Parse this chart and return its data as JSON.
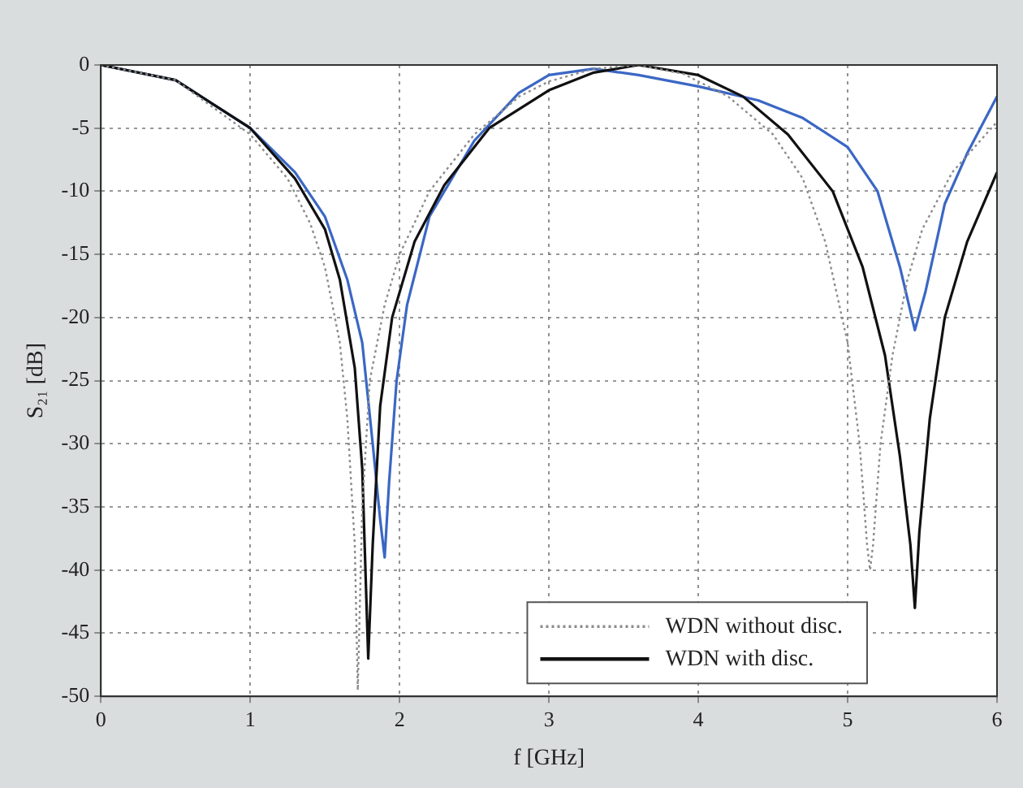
{
  "chart_data": {
    "type": "line",
    "xlabel": "f [GHz]",
    "ylabel": "S₂₁ [dB]",
    "xlim": [
      0,
      6
    ],
    "xticks": [
      0,
      1,
      2,
      3,
      4,
      5,
      6
    ],
    "ylim": [
      -50,
      0
    ],
    "yticks": [
      -50,
      -45,
      -40,
      -35,
      -30,
      -25,
      -20,
      -15,
      -10,
      -5,
      0
    ],
    "grid": true,
    "legend": "bottom right",
    "marker": "none",
    "series": [
      {
        "name": "WDN without disc.",
        "color": "#8c8c8c",
        "line_style": "dotted",
        "x": [
          0,
          0.5,
          1,
          1.25,
          1.4,
          1.5,
          1.6,
          1.65,
          1.7,
          1.72,
          1.75,
          1.8,
          1.9,
          2.0,
          2.2,
          2.5,
          2.8,
          3,
          3.3,
          3.6,
          3.9,
          4.2,
          4.5,
          4.7,
          4.85,
          5.0,
          5.08,
          5.13,
          5.15,
          5.17,
          5.22,
          5.3,
          5.4,
          5.5,
          5.7,
          6
        ],
        "values": [
          0,
          -1.2,
          -5.5,
          -9,
          -12.5,
          -16,
          -22,
          -28,
          -38,
          -49.5,
          -35,
          -25,
          -19,
          -15,
          -10,
          -5.5,
          -2.5,
          -1.3,
          -0.3,
          0,
          -0.7,
          -2.5,
          -5.5,
          -9,
          -14,
          -22,
          -30,
          -38,
          -40,
          -38,
          -30,
          -23,
          -17,
          -13,
          -8.5,
          -4.5
        ]
      },
      {
        "name": "WDN with disc.",
        "color": "#111111",
        "line_style": "solid",
        "x": [
          0,
          0.5,
          1,
          1.3,
          1.5,
          1.6,
          1.7,
          1.75,
          1.79,
          1.82,
          1.87,
          1.95,
          2.1,
          2.3,
          2.6,
          3,
          3.3,
          3.6,
          4,
          4.3,
          4.6,
          4.9,
          5.1,
          5.25,
          5.35,
          5.42,
          5.45,
          5.48,
          5.55,
          5.65,
          5.8,
          6
        ],
        "values": [
          0,
          -1.2,
          -5,
          -9,
          -13,
          -17,
          -24,
          -32,
          -47,
          -38,
          -27,
          -20,
          -14,
          -9.5,
          -5,
          -2,
          -0.6,
          0,
          -0.8,
          -2.5,
          -5.5,
          -10,
          -16,
          -23,
          -31,
          -38,
          -43,
          -37,
          -28,
          -20,
          -14,
          -8.5
        ]
      },
      {
        "color": "#3b67c4",
        "line_style": "solid",
        "x": [
          0,
          0.5,
          1,
          1.3,
          1.5,
          1.65,
          1.75,
          1.82,
          1.87,
          1.9,
          1.93,
          1.98,
          2.05,
          2.2,
          2.5,
          2.8,
          3,
          3.3,
          3.6,
          4,
          4.4,
          4.7,
          5,
          5.2,
          5.35,
          5.45,
          5.52,
          5.65,
          5.8,
          6
        ],
        "values": [
          0,
          -1.2,
          -5,
          -8.5,
          -12,
          -17,
          -22,
          -30,
          -36,
          -39,
          -33,
          -25,
          -19,
          -12,
          -6,
          -2.2,
          -0.8,
          -0.3,
          -0.8,
          -1.7,
          -2.8,
          -4.2,
          -6.5,
          -10,
          -16,
          -21,
          -18,
          -11,
          -7,
          -2.5
        ]
      }
    ]
  }
}
